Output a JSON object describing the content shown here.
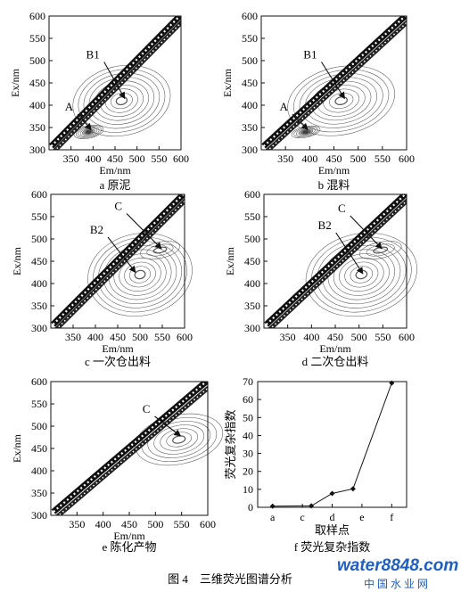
{
  "figure_caption": "图 4　三维荧光图谱分析",
  "watermark": {
    "text": "water8848.com",
    "subtitle": "中 国 水 业 网",
    "colors": {
      "water": "#1f5fbf",
      "num": "#e07b10",
      "accent": "#d8281c"
    }
  },
  "chart_data": [
    {
      "type": "contour",
      "panel": "a",
      "label": "a 原泥",
      "xlabel": "Em/nm",
      "ylabel": "Ex/nm",
      "xlim": [
        300,
        600
      ],
      "ylim": [
        300,
        600
      ],
      "xticks": [
        350,
        400,
        450,
        500,
        550,
        600
      ],
      "yticks": [
        300,
        350,
        400,
        450,
        500,
        550,
        600
      ],
      "peaks": [
        {
          "name": "A",
          "em": 390,
          "ex": 340,
          "rx": 34,
          "ry": 14,
          "levels": 7
        },
        {
          "name": "B1",
          "em": 465,
          "ex": 410,
          "rx": 112,
          "ry": 78,
          "levels": 9
        }
      ],
      "annotations": [
        {
          "text": "A",
          "label_em": 355,
          "label_ex": 388,
          "point_em": 396,
          "point_ex": 345
        },
        {
          "text": "B1",
          "label_em": 415,
          "label_ex": 505,
          "point_em": 472,
          "point_ex": 415
        }
      ]
    },
    {
      "type": "contour",
      "panel": "b",
      "label": "b 混料",
      "xlabel": "Em/nm",
      "ylabel": "Ex/nm",
      "xlim": [
        300,
        600
      ],
      "ylim": [
        300,
        600
      ],
      "xticks": [
        350,
        400,
        450,
        500,
        550,
        600
      ],
      "yticks": [
        300,
        350,
        400,
        450,
        500,
        550,
        600
      ],
      "peaks": [
        {
          "name": "A",
          "em": 392,
          "ex": 340,
          "rx": 30,
          "ry": 12,
          "levels": 6
        },
        {
          "name": "B1",
          "em": 465,
          "ex": 410,
          "rx": 112,
          "ry": 76,
          "levels": 9
        }
      ],
      "annotations": [
        {
          "text": "A",
          "label_em": 355,
          "label_ex": 388,
          "point_em": 396,
          "point_ex": 345
        },
        {
          "text": "B1",
          "label_em": 415,
          "label_ex": 505,
          "point_em": 472,
          "point_ex": 415
        }
      ]
    },
    {
      "type": "contour",
      "panel": "c",
      "label": "c 一次仓出料",
      "xlabel": "Em/nm",
      "ylabel": "Ex/nm",
      "xlim": [
        300,
        600
      ],
      "ylim": [
        300,
        600
      ],
      "xticks": [
        350,
        400,
        450,
        500,
        550,
        600
      ],
      "yticks": [
        300,
        350,
        400,
        450,
        500,
        550,
        600
      ],
      "peaks": [
        {
          "name": "B2",
          "em": 500,
          "ex": 420,
          "rx": 118,
          "ry": 92,
          "levels": 10
        },
        {
          "name": "C",
          "em": 545,
          "ex": 475,
          "rx": 45,
          "ry": 18,
          "levels": 3
        }
      ],
      "annotations": [
        {
          "text": "C",
          "label_em": 460,
          "label_ex": 565,
          "point_em": 548,
          "point_ex": 478
        },
        {
          "text": "B2",
          "label_em": 418,
          "label_ex": 512,
          "point_em": 490,
          "point_ex": 425
        }
      ]
    },
    {
      "type": "contour",
      "panel": "d",
      "label": "d 二次仓出料",
      "xlabel": "Em/nm",
      "ylabel": "Ex/nm",
      "xlim": [
        300,
        600
      ],
      "ylim": [
        300,
        600
      ],
      "xticks": [
        350,
        400,
        450,
        500,
        550,
        600
      ],
      "yticks": [
        300,
        350,
        400,
        450,
        500,
        550,
        600
      ],
      "peaks": [
        {
          "name": "B2",
          "em": 505,
          "ex": 420,
          "rx": 118,
          "ry": 92,
          "levels": 10
        },
        {
          "name": "C",
          "em": 545,
          "ex": 475,
          "rx": 45,
          "ry": 18,
          "levels": 3
        }
      ],
      "annotations": [
        {
          "text": "C",
          "label_em": 472,
          "label_ex": 560,
          "point_em": 548,
          "point_ex": 478
        },
        {
          "text": "B2",
          "label_em": 442,
          "label_ex": 522,
          "point_em": 508,
          "point_ex": 422
        }
      ]
    },
    {
      "type": "contour",
      "panel": "e",
      "label": "e 陈化产物",
      "xlabel": "Em/nm",
      "ylabel": "Ex/nm",
      "xlim": [
        300,
        600
      ],
      "ylim": [
        300,
        600
      ],
      "xticks": [
        350,
        400,
        450,
        500,
        550,
        600
      ],
      "yticks": [
        300,
        350,
        400,
        450,
        500,
        550,
        600
      ],
      "peaks": [
        {
          "name": "C",
          "em": 545,
          "ex": 470,
          "rx": 85,
          "ry": 55,
          "levels": 7
        }
      ],
      "annotations": [
        {
          "text": "C",
          "label_em": 490,
          "label_ex": 530,
          "point_em": 548,
          "point_ex": 478
        }
      ]
    },
    {
      "type": "line",
      "panel": "f",
      "label": "f 荧光复杂指数",
      "xlabel": "取样点",
      "ylabel": "荧光复杂指数",
      "categories": [
        "a",
        "c",
        "d",
        "e",
        "f"
      ],
      "x": [
        1,
        2.3,
        3,
        3.7,
        5
      ],
      "values": [
        0.6,
        0.8,
        7.7,
        10.3,
        69.2
      ],
      "xlim": [
        0.5,
        5.5
      ],
      "ylim": [
        0,
        70
      ],
      "yticks": [
        0,
        10,
        20,
        30,
        40,
        50,
        60,
        70
      ],
      "xtick_positions": [
        1,
        2,
        3,
        4,
        5
      ],
      "marker": "diamond"
    }
  ]
}
